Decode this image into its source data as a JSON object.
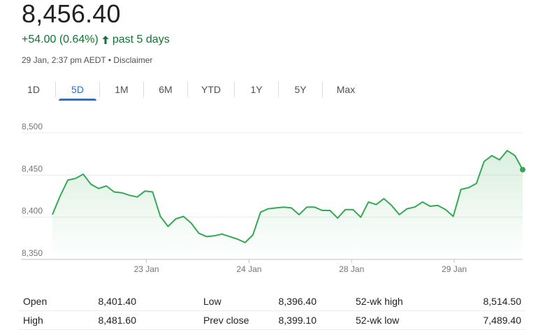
{
  "quote": {
    "price": "8,456.40",
    "change": "+54.00 (0.64%)",
    "period": "past 5 days",
    "timestamp": "29 Jan, 2:37 pm AEDT",
    "separator": "•",
    "disclaimer": "Disclaimer",
    "up_icon": "arrow-up-icon",
    "positive_color": "#137333"
  },
  "tabs": [
    {
      "label": "1D",
      "active": false
    },
    {
      "label": "5D",
      "active": true
    },
    {
      "label": "1M",
      "active": false
    },
    {
      "label": "6M",
      "active": false
    },
    {
      "label": "YTD",
      "active": false
    },
    {
      "label": "1Y",
      "active": false
    },
    {
      "label": "5Y",
      "active": false
    },
    {
      "label": "Max",
      "active": false
    }
  ],
  "chart_data": {
    "type": "area",
    "line_color": "#34a853",
    "ylim": [
      8350,
      8500
    ],
    "yticks": [
      "8,500",
      "8,450",
      "8,400",
      "8,350"
    ],
    "ytick_values": [
      8500,
      8450,
      8400,
      8350
    ],
    "xlim": [
      0,
      55
    ],
    "xticks": [
      {
        "label": "23 Jan",
        "x": 11
      },
      {
        "label": "24 Jan",
        "x": 23
      },
      {
        "label": "28 Jan",
        "x": 35
      },
      {
        "label": "29 Jan",
        "x": 47
      }
    ],
    "grid": true,
    "values": [
      8403,
      8425,
      8444,
      8446,
      8451,
      8439,
      8434,
      8437,
      8430,
      8429,
      8426,
      8424,
      8431,
      8430,
      8401,
      8389,
      8398,
      8401,
      8393,
      8381,
      8377,
      8378,
      8380,
      8377,
      8374,
      8370,
      8379,
      8406,
      8410,
      8411,
      8412,
      8411,
      8403,
      8412,
      8412,
      8408,
      8408,
      8399,
      8409,
      8409,
      8400,
      8418,
      8415,
      8422,
      8414,
      8403,
      8410,
      8412,
      8418,
      8413,
      8414,
      8409,
      8401,
      8433,
      8435,
      8440,
      8466,
      8473,
      8468,
      8479,
      8473,
      8456.4
    ]
  },
  "stats": [
    [
      {
        "label": "Open",
        "value": "8,401.40"
      },
      {
        "label": "Low",
        "value": "8,396.40"
      },
      {
        "label": "52-wk high",
        "value": "8,514.50"
      }
    ],
    [
      {
        "label": "High",
        "value": "8,481.60"
      },
      {
        "label": "Prev close",
        "value": "8,399.10"
      },
      {
        "label": "52-wk low",
        "value": "7,489.40"
      }
    ]
  ]
}
